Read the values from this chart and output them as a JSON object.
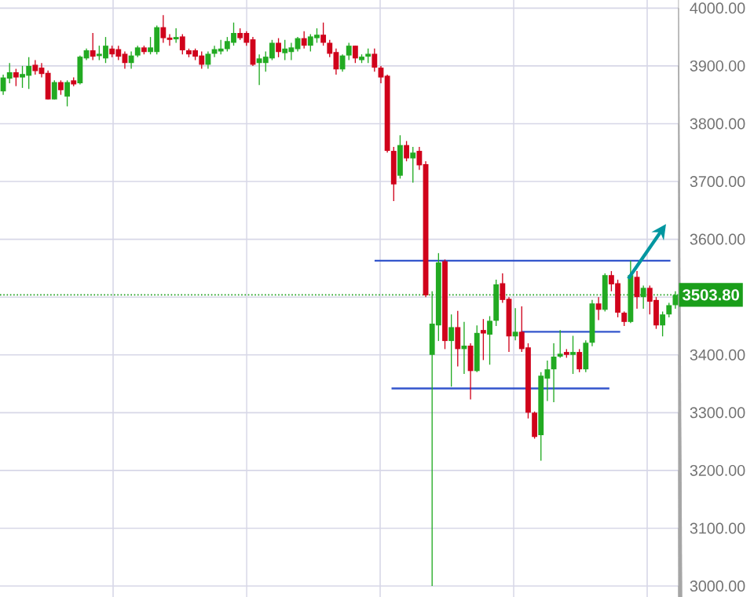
{
  "chart_data": {
    "type": "candlestick",
    "categories": [
      null,
      null,
      null,
      null,
      null,
      null,
      null,
      null,
      null,
      null,
      null,
      null,
      null,
      null,
      null,
      null,
      null,
      null,
      null,
      null,
      null,
      null,
      null,
      null,
      null,
      null,
      null,
      null,
      null,
      null,
      null,
      null,
      null,
      null,
      null,
      null,
      null,
      null,
      null,
      null,
      null,
      null,
      null,
      null,
      null,
      null,
      null,
      null,
      null,
      null,
      null,
      null,
      null,
      null,
      null,
      null,
      null,
      null,
      null,
      null,
      null,
      null,
      null,
      null,
      null,
      null,
      null,
      null,
      null,
      null,
      null,
      null,
      null,
      null,
      null,
      null,
      null,
      null,
      null,
      null,
      null,
      null,
      null,
      null,
      null,
      null,
      null,
      null,
      null,
      null,
      null,
      null,
      null,
      null,
      null,
      null,
      null,
      null,
      null,
      null,
      null,
      null,
      null,
      null,
      null,
      null
    ],
    "ohlc": [
      [
        3856,
        3885,
        3850,
        3880
      ],
      [
        3878,
        3905,
        3870,
        3889
      ],
      [
        3889,
        3895,
        3865,
        3880
      ],
      [
        3880,
        3900,
        3862,
        3886
      ],
      [
        3883,
        3915,
        3860,
        3900
      ],
      [
        3902,
        3910,
        3885,
        3891
      ],
      [
        3897,
        3905,
        3880,
        3886
      ],
      [
        3888,
        3892,
        3842,
        3842
      ],
      [
        3842,
        3875,
        3842,
        3872
      ],
      [
        3872,
        3875,
        3850,
        3858
      ],
      [
        3847,
        3875,
        3830,
        3872
      ],
      [
        3875,
        3880,
        3865,
        3868
      ],
      [
        3870,
        3918,
        3868,
        3916
      ],
      [
        3913,
        3930,
        3910,
        3927
      ],
      [
        3927,
        3957,
        3910,
        3916
      ],
      [
        3917,
        3935,
        3910,
        3921
      ],
      [
        3913,
        3950,
        3905,
        3935
      ],
      [
        3930,
        3935,
        3915,
        3920
      ],
      [
        3929,
        3935,
        3910,
        3916
      ],
      [
        3921,
        3925,
        3895,
        3905
      ],
      [
        3905,
        3925,
        3895,
        3918
      ],
      [
        3918,
        3935,
        3915,
        3932
      ],
      [
        3932,
        3935,
        3920,
        3924
      ],
      [
        3924,
        3950,
        3920,
        3932
      ],
      [
        3924,
        3970,
        3920,
        3967
      ],
      [
        3967,
        3988,
        3940,
        3948
      ],
      [
        3949,
        3955,
        3935,
        3945
      ],
      [
        3946,
        3965,
        3940,
        3950
      ],
      [
        3951,
        3955,
        3920,
        3927
      ],
      [
        3927,
        3930,
        3915,
        3920
      ],
      [
        3927,
        3930,
        3910,
        3916
      ],
      [
        3918,
        3925,
        3895,
        3902
      ],
      [
        3902,
        3925,
        3895,
        3921
      ],
      [
        3921,
        3935,
        3915,
        3929
      ],
      [
        3925,
        3945,
        3920,
        3930
      ],
      [
        3929,
        3950,
        3925,
        3943
      ],
      [
        3940,
        3975,
        3935,
        3957
      ],
      [
        3957,
        3965,
        3945,
        3948
      ],
      [
        3957,
        3960,
        3935,
        3940
      ],
      [
        3946,
        3950,
        3900,
        3902
      ],
      [
        3905,
        3920,
        3867,
        3913
      ],
      [
        3905,
        3925,
        3890,
        3916
      ],
      [
        3913,
        3945,
        3910,
        3940
      ],
      [
        3940,
        3948,
        3915,
        3924
      ],
      [
        3922,
        3945,
        3910,
        3930
      ],
      [
        3924,
        3940,
        3910,
        3932
      ],
      [
        3929,
        3950,
        3925,
        3948
      ],
      [
        3948,
        3960,
        3930,
        3935
      ],
      [
        3935,
        3955,
        3925,
        3951
      ],
      [
        3948,
        3965,
        3940,
        3954
      ],
      [
        3954,
        3975,
        3935,
        3940
      ],
      [
        3940,
        3945,
        3915,
        3921
      ],
      [
        3924,
        3930,
        3885,
        3894
      ],
      [
        3894,
        3920,
        3890,
        3918
      ],
      [
        3918,
        3940,
        3910,
        3935
      ],
      [
        3935,
        3935,
        3905,
        3913
      ],
      [
        3910,
        3920,
        3905,
        3916
      ],
      [
        3916,
        3930,
        3905,
        3921
      ],
      [
        3921,
        3930,
        3890,
        3897
      ],
      [
        3897,
        3900,
        3870,
        3880
      ],
      [
        3883,
        3885,
        3750,
        3753
      ],
      [
        3753,
        3760,
        3666,
        3695
      ],
      [
        3710,
        3780,
        3705,
        3763
      ],
      [
        3763,
        3770,
        3735,
        3740
      ],
      [
        3740,
        3760,
        3698,
        3750
      ],
      [
        3753,
        3760,
        3720,
        3728
      ],
      [
        3730,
        3735,
        3500,
        3503
      ],
      [
        3400,
        3510,
        3000,
        3454
      ],
      [
        3451,
        3576,
        3424,
        3560
      ],
      [
        3562,
        3565,
        3410,
        3424
      ],
      [
        3424,
        3470,
        3345,
        3448
      ],
      [
        3448,
        3476,
        3380,
        3410
      ],
      [
        3410,
        3457,
        3367,
        3416
      ],
      [
        3416,
        3420,
        3323,
        3372
      ],
      [
        3372,
        3451,
        3370,
        3438
      ],
      [
        3443,
        3462,
        3391,
        3437
      ],
      [
        3435,
        3467,
        3383,
        3459
      ],
      [
        3459,
        3530,
        3450,
        3522
      ],
      [
        3524,
        3541,
        3490,
        3495
      ],
      [
        3497,
        3500,
        3405,
        3432
      ],
      [
        3432,
        3481,
        3425,
        3440
      ],
      [
        3440,
        3484,
        3405,
        3410
      ],
      [
        3413,
        3420,
        3290,
        3300
      ],
      [
        3300,
        3302,
        3255,
        3258
      ],
      [
        3261,
        3370,
        3217,
        3364
      ],
      [
        3359,
        3390,
        3320,
        3375
      ],
      [
        3375,
        3420,
        3318,
        3397
      ],
      [
        3397,
        3443,
        3395,
        3402
      ],
      [
        3405,
        3410,
        3395,
        3400
      ],
      [
        3400,
        3433,
        3367,
        3405
      ],
      [
        3405,
        3410,
        3370,
        3375
      ],
      [
        3375,
        3425,
        3370,
        3421
      ],
      [
        3421,
        3495,
        3415,
        3489
      ],
      [
        3489,
        3500,
        3460,
        3478
      ],
      [
        3478,
        3541,
        3475,
        3538
      ],
      [
        3538,
        3545,
        3510,
        3522
      ],
      [
        3524,
        3530,
        3465,
        3473
      ],
      [
        3473,
        3475,
        3450,
        3457
      ],
      [
        3457,
        3563,
        3455,
        3538
      ],
      [
        3535,
        3545,
        3480,
        3500
      ],
      [
        3500,
        3520,
        3480,
        3516
      ],
      [
        3516,
        3520,
        3470,
        3492
      ],
      [
        3495,
        3500,
        3445,
        3451
      ],
      [
        3451,
        3475,
        3432,
        3470
      ],
      [
        3470,
        3490,
        3465,
        3486
      ],
      [
        3486,
        3510,
        3480,
        3503.8
      ]
    ],
    "ylim": [
      2981,
      4014
    ],
    "yticks": [
      {
        "value": 3000,
        "label": "3000.00"
      },
      {
        "value": 3100,
        "label": "3100.00"
      },
      {
        "value": 3200,
        "label": "3200.00"
      },
      {
        "value": 3300,
        "label": "3300.00"
      },
      {
        "value": 3400,
        "label": "3400.00"
      },
      {
        "value": 3500,
        "label": null
      },
      {
        "value": 3600,
        "label": "3600.00"
      },
      {
        "value": 3700,
        "label": "3700.00"
      },
      {
        "value": 3800,
        "label": "3800.00"
      },
      {
        "value": 3900,
        "label": "3900.00"
      },
      {
        "value": 4000,
        "label": "4000.00"
      }
    ],
    "grid": true,
    "tick_labels": "y",
    "ref_lines": [
      {
        "axis": "y",
        "value": 3503.8,
        "label": "3503.80",
        "color": "#1a9e1a",
        "line_style": "dotted"
      },
      {
        "axis": "y",
        "value": 3563,
        "color": "#3355cc",
        "line_style": "solid"
      },
      {
        "axis": "y",
        "value": 3440,
        "color": "#3355cc",
        "line_style": "solid"
      },
      {
        "axis": "y",
        "value": 3342,
        "color": "#3355cc",
        "line_style": "solid"
      }
    ]
  }
}
